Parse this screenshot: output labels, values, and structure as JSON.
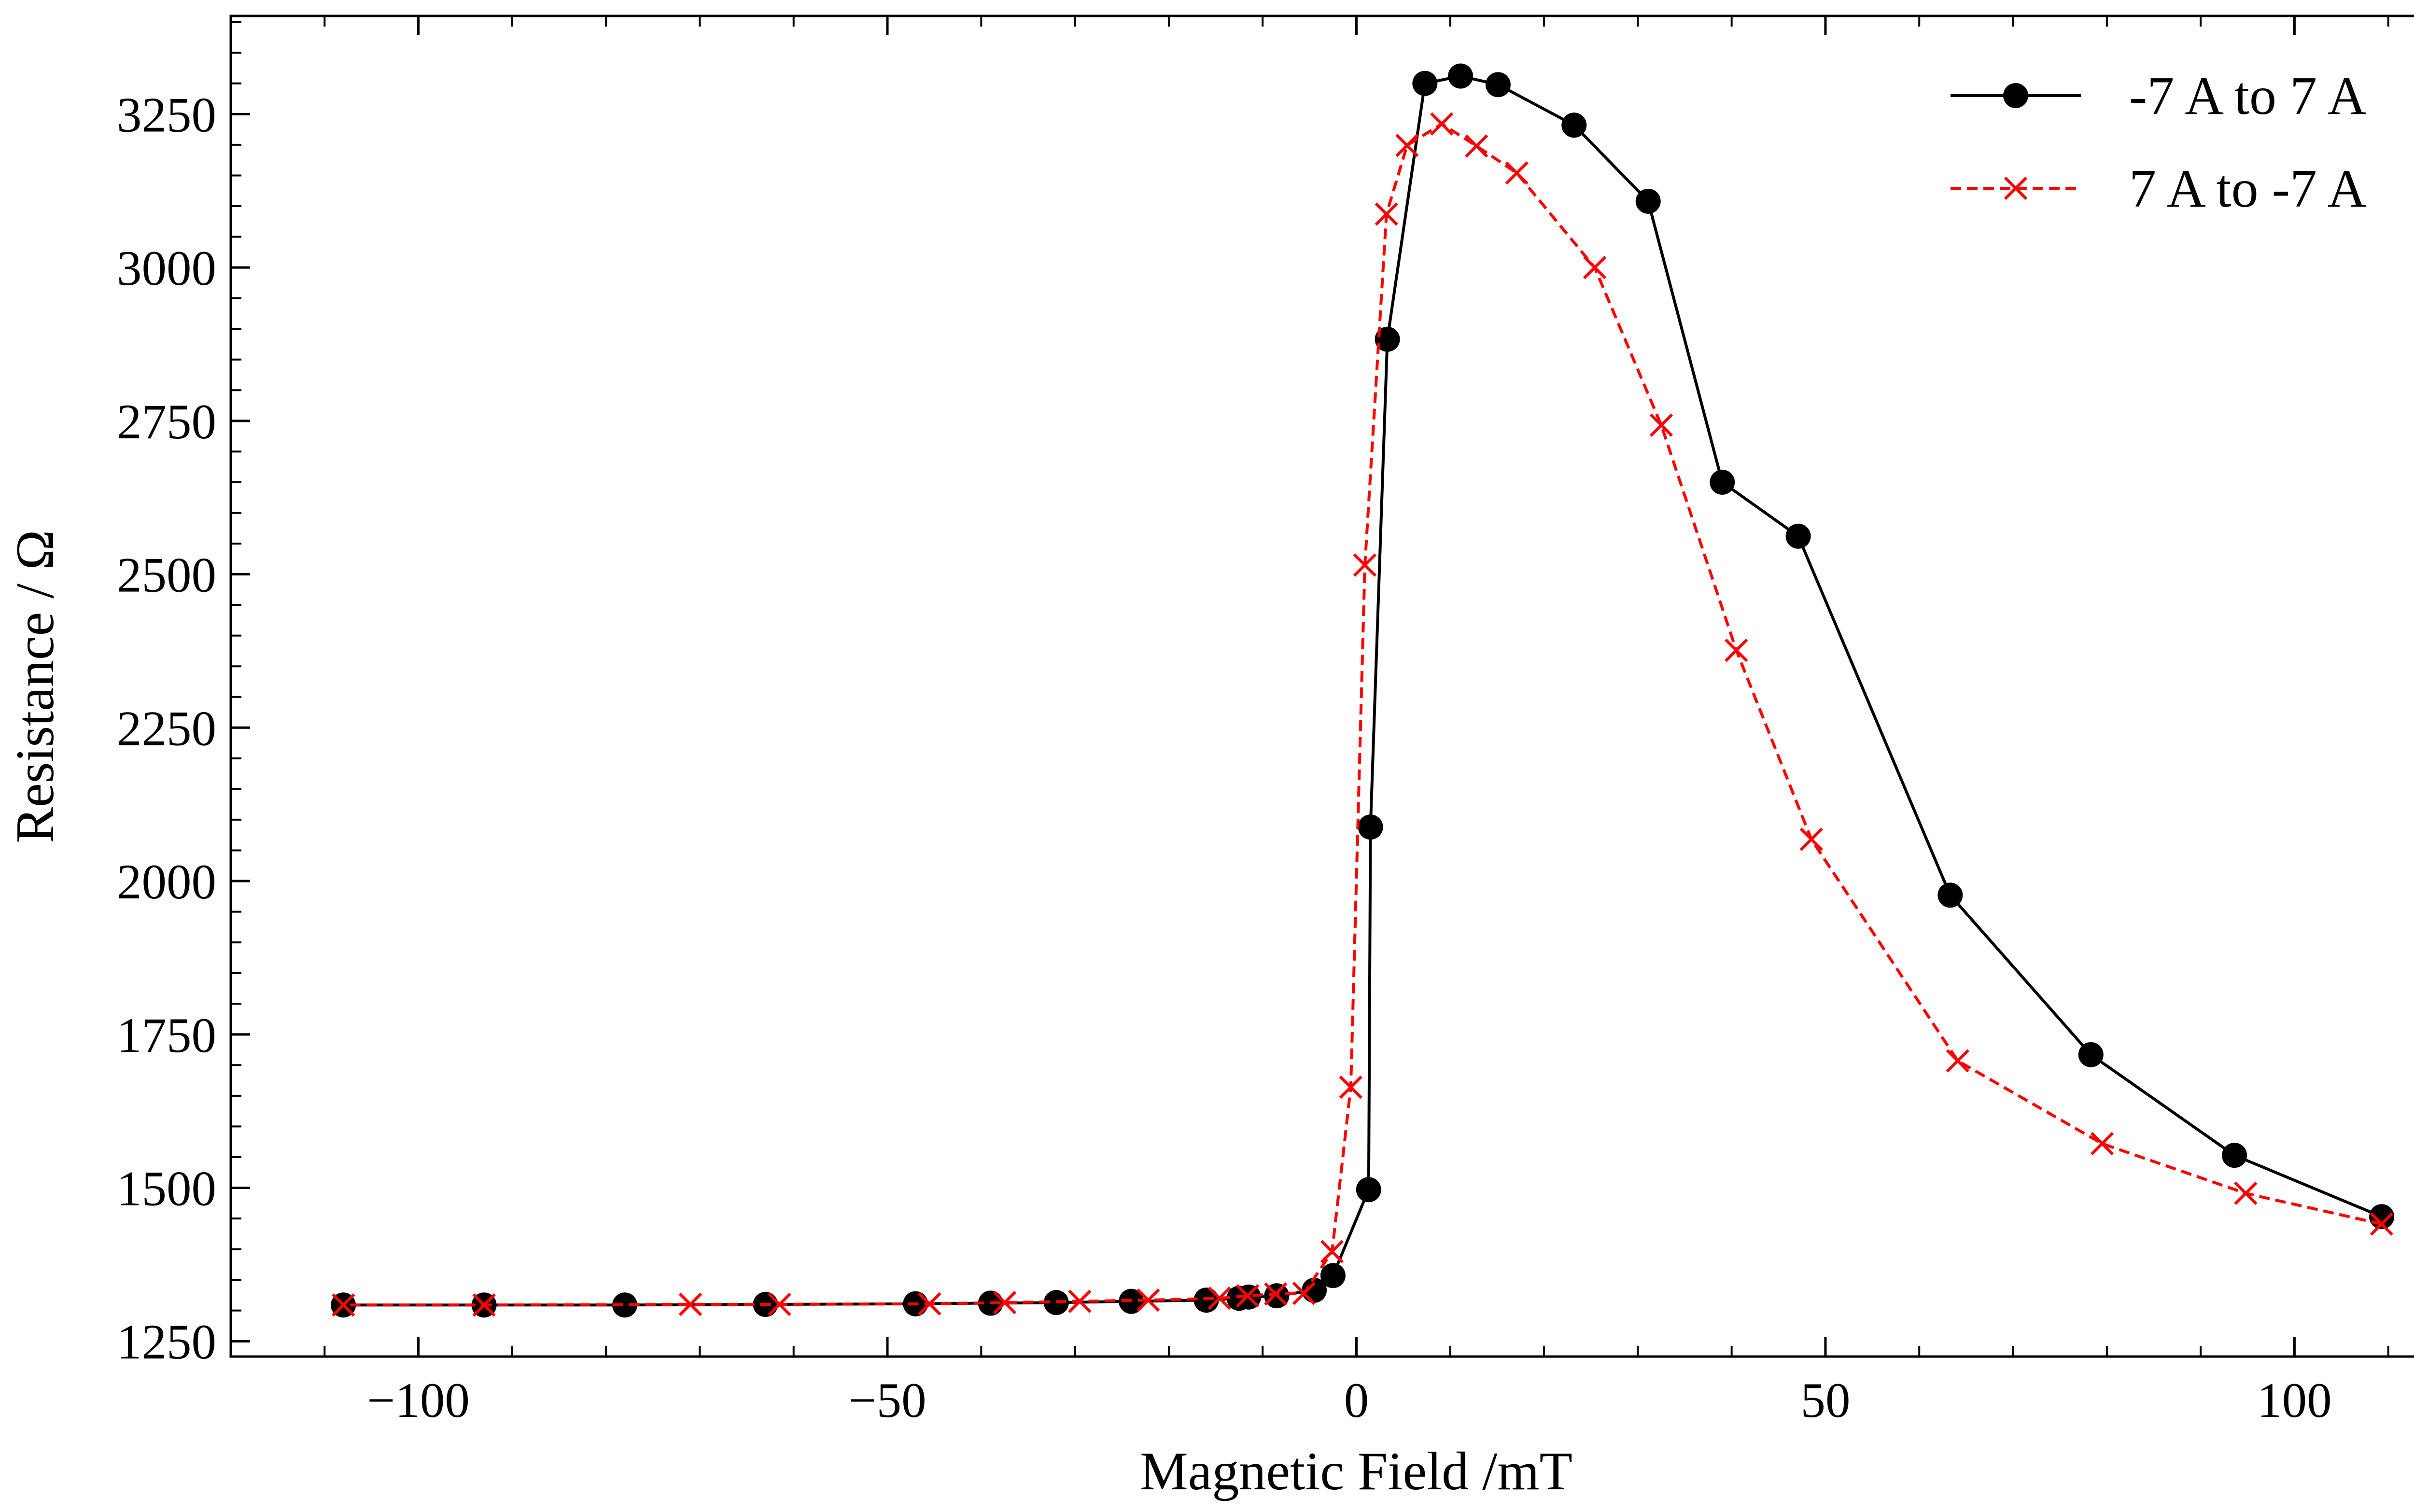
{
  "chart_data": {
    "type": "line",
    "title": "",
    "xlabel": "Magnetic Field /mT",
    "ylabel": "Resistance / Ω",
    "xlim": [
      -120,
      120
    ],
    "ylim": [
      1225,
      3410
    ],
    "x_ticks": [
      -100,
      -50,
      0,
      50,
      100
    ],
    "x_tick_labels": [
      "−100",
      "−50",
      "0",
      "50",
      "100"
    ],
    "y_ticks": [
      1250,
      1500,
      1750,
      2000,
      2250,
      2500,
      2750,
      3000,
      3250
    ],
    "y_tick_labels": [
      "1250",
      "1500",
      "1750",
      "2000",
      "2250",
      "2500",
      "2750",
      "3000",
      "3250"
    ],
    "grid": false,
    "legend_position": "top-right",
    "series": [
      {
        "name": "-7 A to 7 A",
        "color": "#000000",
        "line_style": "solid",
        "marker": "circle",
        "x": [
          -108,
          -93,
          -78,
          -63,
          -47,
          -39,
          -32,
          -24,
          -16,
          -12.5,
          -11.5,
          -8.5,
          -4.5,
          -2.5,
          1.3,
          1.5,
          3.3,
          7.3,
          11.1,
          15.1,
          23.2,
          31.1,
          39.0,
          47.1,
          63.3,
          78.3,
          93.6,
          109.3
        ],
        "y": [
          1309,
          1309,
          1309,
          1310,
          1311,
          1312,
          1313,
          1315,
          1317,
          1320,
          1322,
          1324,
          1333,
          1357,
          1497,
          2088,
          2883,
          3300,
          3312,
          3298,
          3232,
          3108,
          2650,
          2562,
          1977,
          1717,
          1553,
          1453
        ]
      },
      {
        "name": "7 A to -7 A",
        "color": "#ff0000",
        "line_style": "dashed",
        "marker": "x",
        "x": [
          109.3,
          94.8,
          79.5,
          64.1,
          48.5,
          40.5,
          32.5,
          25.4,
          17.1,
          12.8,
          9.1,
          5.4,
          3.2,
          0.9,
          -0.6,
          -2.6,
          -5.6,
          -8.6,
          -11.6,
          -14.6,
          -22.2,
          -29.5,
          -37.5,
          -45.5,
          -61.5,
          -71.0,
          -93.0,
          -108.0
        ],
        "y": [
          1441,
          1491,
          1572,
          1707,
          2068,
          2376,
          2743,
          3000,
          3154,
          3198,
          3234,
          3199,
          3087,
          2515,
          1664,
          1396,
          1328,
          1327,
          1324,
          1320,
          1317,
          1315,
          1313,
          1311,
          1310,
          1310,
          1309,
          1309
        ]
      }
    ]
  }
}
